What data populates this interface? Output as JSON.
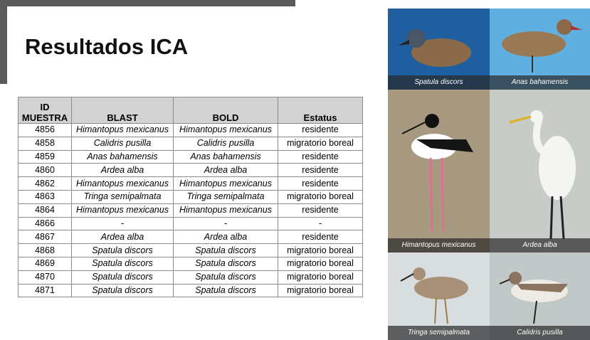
{
  "title": "Resultados ICA",
  "table": {
    "headers": [
      "ID MUESTRA",
      "BLAST",
      "BOLD",
      "Estatus"
    ],
    "rows": [
      [
        "4856",
        "Himantopus mexicanus",
        "Himantopus mexicanus",
        "residente"
      ],
      [
        "4858",
        "Calidris pusilla",
        "Calidris pusilla",
        "migratorio boreal"
      ],
      [
        "4859",
        "Anas bahamensis",
        "Anas bahamensis",
        "residente"
      ],
      [
        "4860",
        "Ardea alba",
        "Ardea alba",
        "residente"
      ],
      [
        "4862",
        "Himantopus mexicanus",
        "Himantopus mexicanus",
        "residente"
      ],
      [
        "4863",
        "Tringa semipalmata",
        "Tringa semipalmata",
        "migratorio boreal"
      ],
      [
        "4864",
        "Himantopus mexicanus",
        "Himantopus mexicanus",
        "residente"
      ],
      [
        "4866",
        "-",
        "-",
        "-"
      ],
      [
        "4867",
        "Ardea alba",
        "Ardea alba",
        "residente"
      ],
      [
        "4868",
        "Spatula discors",
        "Spatula discors",
        "migratorio boreal"
      ],
      [
        "4869",
        "Spatula discors",
        "Spatula discors",
        "migratorio boreal"
      ],
      [
        "4870",
        "Spatula discors",
        "Spatula discors",
        "migratorio boreal"
      ],
      [
        "4871",
        "Spatula discors",
        "Spatula discors",
        "migratorio boreal"
      ]
    ]
  },
  "photos": [
    {
      "caption": "Spatula discors"
    },
    {
      "caption": "Anas bahamensis"
    },
    {
      "caption": "Himantopus mexicanus"
    },
    {
      "caption": "Ardea alba"
    },
    {
      "caption": "Tringa semipalmata"
    },
    {
      "caption": "Calidris pusilla"
    }
  ]
}
